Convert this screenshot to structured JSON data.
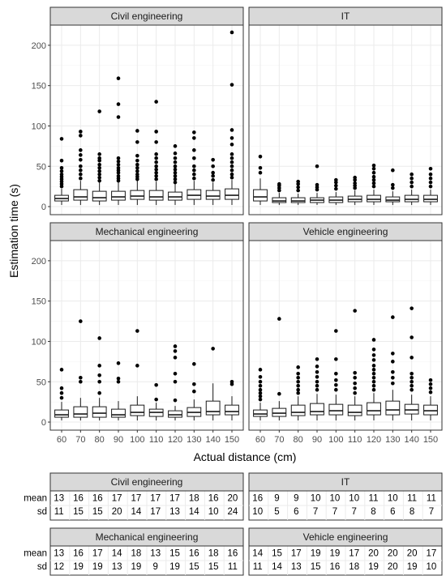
{
  "chart_data": {
    "type": "boxplot",
    "ylabel": "Estimation time (s)",
    "xlabel": "Actual distance (cm)",
    "ylim": [
      -10,
      225
    ],
    "yticks": [
      0,
      50,
      100,
      150,
      200
    ],
    "categories": [
      "60",
      "70",
      "80",
      "90",
      "100",
      "110",
      "120",
      "130",
      "140",
      "150"
    ],
    "grid": true,
    "panels": [
      {
        "name": "Civil engineering",
        "boxes": [
          {
            "q1": 7,
            "median": 10,
            "q3": 14,
            "lo": 2,
            "hi": 22,
            "outliers": [
              25,
              28,
              31,
              34,
              37,
              40,
              44,
              48,
              57,
              84
            ]
          },
          {
            "q1": 8,
            "median": 12,
            "q3": 21,
            "lo": 2,
            "hi": 32,
            "outliers": [
              35,
              40,
              45,
              50,
              58,
              64,
              70,
              88,
              93
            ]
          },
          {
            "q1": 7,
            "median": 11,
            "q3": 19,
            "lo": 2,
            "hi": 30,
            "outliers": [
              32,
              36,
              40,
              44,
              48,
              52,
              57,
              60,
              65,
              118
            ]
          },
          {
            "q1": 8,
            "median": 12,
            "q3": 19,
            "lo": 2,
            "hi": 30,
            "outliers": [
              32,
              35,
              38,
              42,
              45,
              48,
              52,
              56,
              60,
              111,
              127,
              159
            ]
          },
          {
            "q1": 9,
            "median": 13,
            "q3": 20,
            "lo": 2,
            "hi": 32,
            "outliers": [
              34,
              37,
              40,
              44,
              48,
              52,
              57,
              63,
              80,
              94
            ]
          },
          {
            "q1": 8,
            "median": 12,
            "q3": 20,
            "lo": 2,
            "hi": 31,
            "outliers": [
              34,
              38,
              42,
              46,
              50,
              55,
              60,
              65,
              80,
              93,
              130
            ]
          },
          {
            "q1": 8,
            "median": 12,
            "q3": 18,
            "lo": 2,
            "hi": 28,
            "outliers": [
              30,
              34,
              38,
              42,
              46,
              50,
              55,
              60,
              66,
              75
            ]
          },
          {
            "q1": 9,
            "median": 14,
            "q3": 21,
            "lo": 2,
            "hi": 32,
            "outliers": [
              35,
              40,
              45,
              50,
              60,
              70,
              85,
              92
            ]
          },
          {
            "q1": 9,
            "median": 13,
            "q3": 20,
            "lo": 2,
            "hi": 30,
            "outliers": [
              33,
              38,
              42,
              50,
              58
            ]
          },
          {
            "q1": 9,
            "median": 14,
            "q3": 22,
            "lo": 2,
            "hi": 33,
            "outliers": [
              36,
              40,
              45,
              50,
              55,
              60,
              65,
              77,
              85,
              95,
              151,
              216
            ]
          }
        ]
      },
      {
        "name": "IT",
        "boxes": [
          {
            "q1": 7,
            "median": 12,
            "q3": 21,
            "lo": 2,
            "hi": 35,
            "outliers": [
              42,
              48,
              62
            ]
          },
          {
            "q1": 5,
            "median": 7,
            "q3": 11,
            "lo": 2,
            "hi": 17,
            "outliers": [
              20,
              23,
              26,
              28
            ]
          },
          {
            "q1": 5,
            "median": 7,
            "q3": 11,
            "lo": 2,
            "hi": 16,
            "outliers": [
              20,
              24,
              28,
              31
            ]
          },
          {
            "q1": 5,
            "median": 8,
            "q3": 11,
            "lo": 2,
            "hi": 17,
            "outliers": [
              21,
              24,
              27,
              50
            ]
          },
          {
            "q1": 5,
            "median": 8,
            "q3": 12,
            "lo": 2,
            "hi": 18,
            "outliers": [
              22,
              26,
              30,
              33
            ]
          },
          {
            "q1": 6,
            "median": 9,
            "q3": 13,
            "lo": 2,
            "hi": 20,
            "outliers": [
              23,
              26,
              29,
              33,
              36
            ]
          },
          {
            "q1": 6,
            "median": 9,
            "q3": 14,
            "lo": 2,
            "hi": 21,
            "outliers": [
              25,
              29,
              33,
              37,
              42,
              47,
              51
            ]
          },
          {
            "q1": 6,
            "median": 8,
            "q3": 12,
            "lo": 2,
            "hi": 19,
            "outliers": [
              23,
              27,
              45
            ]
          },
          {
            "q1": 6,
            "median": 9,
            "q3": 14,
            "lo": 2,
            "hi": 21,
            "outliers": [
              25,
              30,
              35,
              40
            ]
          },
          {
            "q1": 6,
            "median": 9,
            "q3": 14,
            "lo": 2,
            "hi": 21,
            "outliers": [
              25,
              30,
              35,
              40,
              47
            ]
          }
        ]
      },
      {
        "name": "Mechanical engineering",
        "boxes": [
          {
            "q1": 6,
            "median": 9,
            "q3": 15,
            "lo": 2,
            "hi": 25,
            "outliers": [
              30,
              36,
              42,
              65
            ]
          },
          {
            "q1": 6,
            "median": 10,
            "q3": 19,
            "lo": 2,
            "hi": 30,
            "outliers": [
              50,
              55,
              125
            ]
          },
          {
            "q1": 6,
            "median": 11,
            "q3": 19,
            "lo": 2,
            "hi": 30,
            "outliers": [
              36,
              50,
              58,
              70,
              104
            ]
          },
          {
            "q1": 6,
            "median": 9,
            "q3": 16,
            "lo": 2,
            "hi": 26,
            "outliers": [
              50,
              54,
              73
            ]
          },
          {
            "q1": 8,
            "median": 12,
            "q3": 21,
            "lo": 2,
            "hi": 32,
            "outliers": [
              70,
              113
            ]
          },
          {
            "q1": 7,
            "median": 12,
            "q3": 16,
            "lo": 2,
            "hi": 24,
            "outliers": [
              28,
              46
            ]
          },
          {
            "q1": 6,
            "median": 9,
            "q3": 14,
            "lo": 2,
            "hi": 20,
            "outliers": [
              27,
              50,
              60,
              80,
              88,
              94
            ]
          },
          {
            "q1": 7,
            "median": 12,
            "q3": 18,
            "lo": 2,
            "hi": 28,
            "outliers": [
              38,
              47,
              72
            ]
          },
          {
            "q1": 9,
            "median": 13,
            "q3": 26,
            "lo": 2,
            "hi": 48,
            "outliers": [
              91
            ]
          },
          {
            "q1": 9,
            "median": 13,
            "q3": 21,
            "lo": 2,
            "hi": 32,
            "outliers": [
              47,
              50
            ]
          }
        ]
      },
      {
        "name": "Vehicle engineering",
        "boxes": [
          {
            "q1": 7,
            "median": 10,
            "q3": 15,
            "lo": 2,
            "hi": 24,
            "outliers": [
              28,
              32,
              36,
              40,
              45,
              50,
              56,
              65
            ]
          },
          {
            "q1": 7,
            "median": 11,
            "q3": 17,
            "lo": 2,
            "hi": 26,
            "outliers": [
              35,
              128
            ]
          },
          {
            "q1": 8,
            "median": 12,
            "q3": 21,
            "lo": 2,
            "hi": 32,
            "outliers": [
              36,
              40,
              45,
              50,
              55,
              60,
              68
            ]
          },
          {
            "q1": 9,
            "median": 13,
            "q3": 23,
            "lo": 2,
            "hi": 35,
            "outliers": [
              40,
              45,
              50,
              56,
              62,
              69,
              78
            ]
          },
          {
            "q1": 9,
            "median": 14,
            "q3": 22,
            "lo": 2,
            "hi": 34,
            "outliers": [
              40,
              46,
              52,
              60,
              78,
              113
            ]
          },
          {
            "q1": 8,
            "median": 12,
            "q3": 21,
            "lo": 2,
            "hi": 32,
            "outliers": [
              36,
              42,
              48,
              55,
              61,
              138
            ]
          },
          {
            "q1": 9,
            "median": 14,
            "q3": 24,
            "lo": 2,
            "hi": 36,
            "outliers": [
              40,
              45,
              50,
              55,
              60,
              65,
              70,
              77,
              83,
              90,
              102
            ]
          },
          {
            "q1": 9,
            "median": 15,
            "q3": 26,
            "lo": 2,
            "hi": 40,
            "outliers": [
              48,
              55,
              62,
              75,
              85,
              130
            ]
          },
          {
            "q1": 10,
            "median": 15,
            "q3": 22,
            "lo": 2,
            "hi": 34,
            "outliers": [
              40,
              45,
              50,
              55,
              60,
              80,
              105,
              141
            ]
          },
          {
            "q1": 9,
            "median": 14,
            "q3": 21,
            "lo": 2,
            "hi": 32,
            "outliers": [
              37,
              42,
              47,
              52
            ]
          }
        ]
      }
    ]
  },
  "summary_table": {
    "row_labels": {
      "mean": "mean",
      "sd": "sd"
    },
    "panels": [
      {
        "name": "Civil engineering",
        "mean": [
          "13",
          "16",
          "16",
          "17",
          "17",
          "17",
          "17",
          "18",
          "16",
          "20"
        ],
        "sd": [
          "11",
          "15",
          "15",
          "20",
          "14",
          "17",
          "13",
          "14",
          "10",
          "24"
        ]
      },
      {
        "name": "IT",
        "mean": [
          "16",
          "9",
          "9",
          "10",
          "10",
          "10",
          "11",
          "10",
          "11",
          "11"
        ],
        "sd": [
          "10",
          "5",
          "6",
          "7",
          "7",
          "7",
          "8",
          "6",
          "8",
          "7"
        ]
      },
      {
        "name": "Mechanical engineering",
        "mean": [
          "13",
          "16",
          "17",
          "14",
          "18",
          "13",
          "15",
          "16",
          "18",
          "16"
        ],
        "sd": [
          "12",
          "19",
          "19",
          "13",
          "19",
          "9",
          "19",
          "15",
          "15",
          "11"
        ]
      },
      {
        "name": "Vehicle engineering",
        "mean": [
          "14",
          "15",
          "17",
          "19",
          "19",
          "17",
          "20",
          "20",
          "20",
          "17"
        ],
        "sd": [
          "11",
          "14",
          "13",
          "15",
          "16",
          "18",
          "19",
          "20",
          "19",
          "10"
        ]
      }
    ]
  },
  "colors": {
    "strip_fill": "#d9d9d9",
    "panel_border": "#333333",
    "grid_major": "#ebebeb",
    "grid_minor": "#f5f5f5",
    "box_stroke": "#1a1a1a",
    "outlier": "#000000"
  }
}
